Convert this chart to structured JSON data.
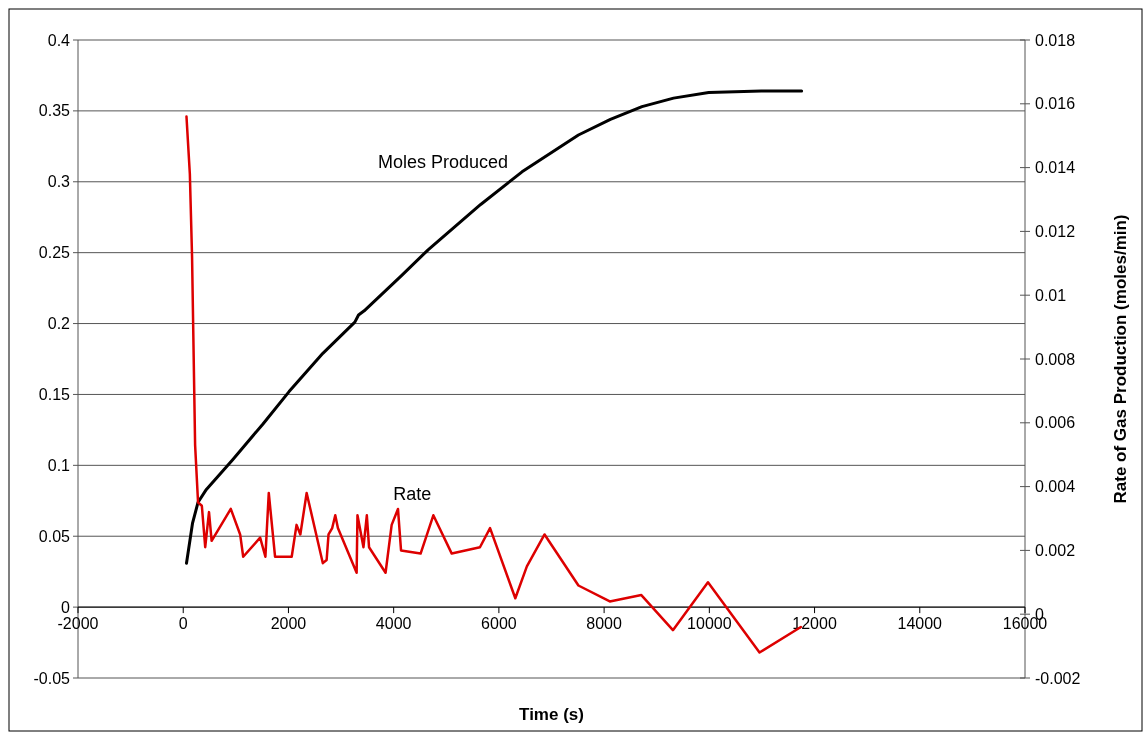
{
  "chart_data": {
    "type": "line",
    "xlabel": "Time (s)",
    "y2label": "Rate of Gas Production (moles/min)",
    "xlim": [
      -2000,
      16000
    ],
    "xticks": [
      -2000,
      0,
      2000,
      4000,
      6000,
      8000,
      10000,
      12000,
      14000,
      16000
    ],
    "ylim": [
      -0.05,
      0.4
    ],
    "yticks": [
      -0.05,
      0,
      0.05,
      0.1,
      0.15,
      0.2,
      0.25,
      0.3,
      0.35,
      0.4
    ],
    "y2lim": [
      -0.002,
      0.018
    ],
    "y2ticks": [
      -0.002,
      0,
      0.002,
      0.004,
      0.006,
      0.008,
      0.01,
      0.012,
      0.014,
      0.016,
      0.018
    ],
    "grid": "y",
    "marker": "none",
    "line_style": "solid",
    "series": [
      {
        "name": "Moles Produced",
        "color": "#000000",
        "x": [
          62,
          176,
          282,
          440,
          940,
          1512,
          2012,
          2654,
          3262,
          3332,
          3440,
          4154,
          4654,
          5654,
          6440,
          7512,
          8120,
          8720,
          9320,
          9988,
          10988,
          11754
        ],
        "values": [
          0.031,
          0.059,
          0.074,
          0.083,
          0.104,
          0.129,
          0.152,
          0.179,
          0.201,
          0.206,
          0.209,
          0.234,
          0.252,
          0.284,
          0.307,
          0.333,
          0.344,
          0.353,
          0.359,
          0.363,
          0.364,
          0.364
        ]
      },
      {
        "name": "Rate",
        "color": "#dd0000",
        "axis": "y2",
        "x": [
          62,
          126,
          168,
          226,
          282,
          354,
          418,
          490,
          540,
          904,
          1082,
          1140,
          1462,
          1562,
          1626,
          1746,
          2062,
          2154,
          2226,
          2346,
          2654,
          2726,
          2762,
          2832,
          2890,
          2940,
          3296,
          3312,
          3426,
          3490,
          3532,
          3846,
          3962,
          4082,
          4140,
          4512,
          4754,
          5104,
          5640,
          5832,
          6312,
          6532,
          6868,
          7512,
          8108,
          8708,
          9308,
          9974,
          10954,
          11740
        ],
        "values": [
          0.0156,
          0.0138,
          0.0112,
          0.0053,
          0.0035,
          0.0034,
          0.0021,
          0.0032,
          0.0023,
          0.0033,
          0.0025,
          0.0018,
          0.0024,
          0.0018,
          0.0038,
          0.0018,
          0.0018,
          0.0028,
          0.0025,
          0.0038,
          0.0016,
          0.0017,
          0.0025,
          0.0027,
          0.0031,
          0.0027,
          0.0013,
          0.0031,
          0.0021,
          0.0031,
          0.0021,
          0.0013,
          0.0028,
          0.0033,
          0.002,
          0.0019,
          0.0031,
          0.0019,
          0.0021,
          0.0027,
          0.0005,
          0.0015,
          0.0025,
          0.0009,
          0.0004,
          0.0006,
          -0.0005,
          0.001,
          -0.0012,
          -0.0004
        ]
      }
    ]
  }
}
